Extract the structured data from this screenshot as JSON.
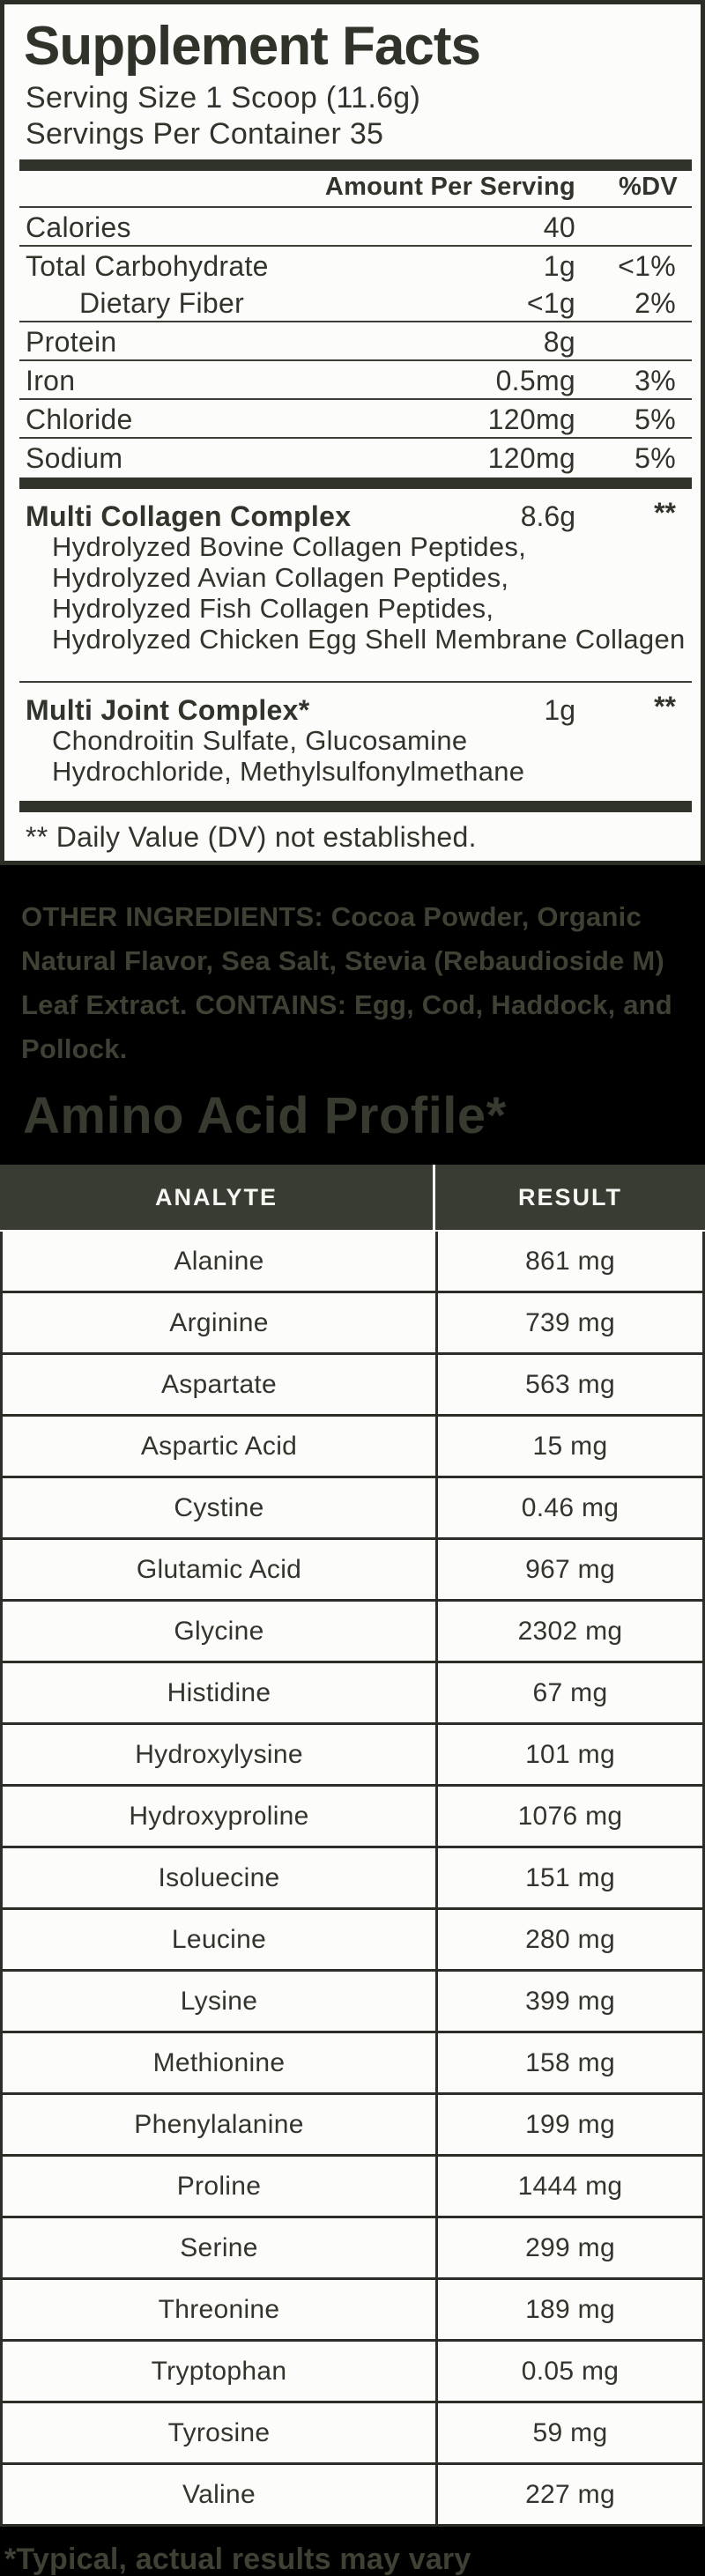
{
  "panel": {
    "title": "Supplement Facts",
    "serving_size": "Serving Size 1 Scoop (11.6g)",
    "servings_per_container": "Servings Per Container 35",
    "amount_per_serving_header": "Amount Per Serving",
    "dv_header": "%DV",
    "nutrients": [
      {
        "name": "Calories",
        "amount": "40",
        "dv": "",
        "indent": false,
        "rule_after": true
      },
      {
        "name": "Total Carbohydrate",
        "amount": "1g",
        "dv": "<1%",
        "indent": false,
        "rule_after": false
      },
      {
        "name": "Dietary Fiber",
        "amount": "<1g",
        "dv": "2%",
        "indent": true,
        "rule_after": true
      },
      {
        "name": "Protein",
        "amount": "8g",
        "dv": "",
        "indent": false,
        "rule_after": true
      },
      {
        "name": "Iron",
        "amount": "0.5mg",
        "dv": "3%",
        "indent": false,
        "rule_after": true
      },
      {
        "name": "Chloride",
        "amount": "120mg",
        "dv": "5%",
        "indent": false,
        "rule_after": true
      },
      {
        "name": "Sodium",
        "amount": "120mg",
        "dv": "5%",
        "indent": false,
        "rule_after": false
      }
    ],
    "complexes": [
      {
        "name": "Multi Collagen Complex",
        "amount": "8.6g",
        "dv": "**",
        "ingredients": [
          "Hydrolyzed Bovine Collagen Peptides,",
          "Hydrolyzed Avian Collagen Peptides,",
          "Hydrolyzed Fish Collagen Peptides,",
          "Hydrolyzed Chicken Egg Shell Membrane Collagen"
        ]
      },
      {
        "name": "Multi Joint Complex*",
        "amount": "1g",
        "dv": "**",
        "ingredients": [
          "Chondroitin Sulfate, Glucosamine",
          "Hydrochloride, Methylsulfonylmethane"
        ]
      }
    ],
    "dv_note": "** Daily Value (DV) not established."
  },
  "other_ingredients": {
    "label": "OTHER INGREDIENTS:",
    "text": " Cocoa Powder, Organic Natural Flavor, Sea Salt, Stevia (Rebaudioside M) Leaf Extract. ",
    "contains_label": "CONTAINS:",
    "contains_text": " Egg, Cod, Haddock, and Pollock."
  },
  "amino_profile": {
    "title": "Amino Acid Profile*",
    "columns": [
      "ANALYTE",
      "RESULT"
    ],
    "rows": [
      [
        "Alanine",
        "861 mg"
      ],
      [
        "Arginine",
        "739 mg"
      ],
      [
        "Aspartate",
        "563 mg"
      ],
      [
        "Aspartic Acid",
        "15 mg"
      ],
      [
        "Cystine",
        "0.46 mg"
      ],
      [
        "Glutamic Acid",
        "967 mg"
      ],
      [
        "Glycine",
        "2302 mg"
      ],
      [
        "Histidine",
        "67 mg"
      ],
      [
        "Hydroxylysine",
        "101 mg"
      ],
      [
        "Hydroxyproline",
        "1076 mg"
      ],
      [
        "Isoluecine",
        "151 mg"
      ],
      [
        "Leucine",
        "280 mg"
      ],
      [
        "Lysine",
        "399 mg"
      ],
      [
        "Methionine",
        "158 mg"
      ],
      [
        "Phenylalanine",
        "199 mg"
      ],
      [
        "Proline",
        "1444 mg"
      ],
      [
        "Serine",
        "299 mg"
      ],
      [
        "Threonine",
        "189 mg"
      ],
      [
        "Tryptophan",
        "0.05 mg"
      ],
      [
        "Tyrosine",
        "59 mg"
      ],
      [
        "Valine",
        "227 mg"
      ]
    ],
    "footnote": "*Typical, actual results may vary"
  },
  "colors": {
    "ink": "#30342b",
    "panel_bg": "#fcfcfa",
    "page_bg": "#000000",
    "muted_olive": "#3e4134",
    "table_header_bg": "#383c33",
    "table_header_text": "#f6f6f3",
    "rule": "#2b2e26"
  }
}
